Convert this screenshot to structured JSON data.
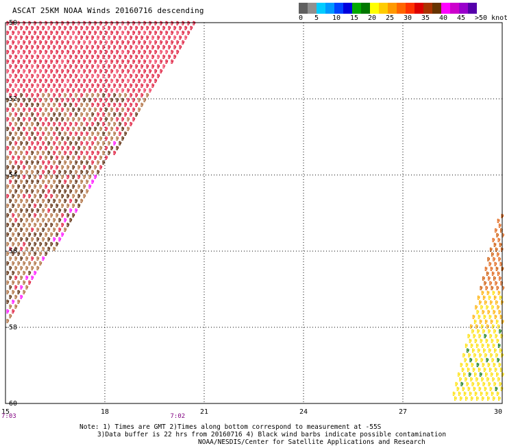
{
  "title": "ASCAT 25KM NOAA Winds 20160716 descending",
  "colorbar": {
    "colors": [
      "#606060",
      "#909090",
      "#00ccff",
      "#0099ff",
      "#0044ff",
      "#0000dd",
      "#00aa00",
      "#007700",
      "#ffff00",
      "#ffcc00",
      "#ff9900",
      "#ff6600",
      "#ff3300",
      "#dd0000",
      "#aa3300",
      "#663300",
      "#ff00ff",
      "#cc00cc",
      "#9900cc",
      "#5500aa"
    ],
    "labels": [
      "0",
      "5",
      "10",
      "15",
      "20",
      "25",
      "30",
      "35",
      "40",
      "45",
      ">50 knots"
    ]
  },
  "axes": {
    "lat_ticks": [
      "-50",
      "-52",
      "-54",
      "-56",
      "-58",
      "-60"
    ],
    "lon_ticks": [
      "15",
      "18",
      "21",
      "24",
      "27",
      "30"
    ],
    "lon_range": [
      15,
      30
    ],
    "lat_range": [
      -50,
      -60
    ]
  },
  "times": [
    {
      "label": "7:03",
      "lon": 15
    },
    {
      "label": "7:02",
      "lon": 20.2
    }
  ],
  "notes": {
    "line1": "Note: 1) Times are GMT 2)Times along bottom correspond to measurement at -55S",
    "line2": "3)Data buffer is 22 hrs from 20160716 4) Black wind barbs indicate possible contamination",
    "line3": "NOAA/NESDIS/Center for Satellite Applications and Research"
  },
  "colors": {
    "grid": "#000000",
    "time_label": "#800080",
    "barb_strong": "#dd1133",
    "barb_brown": "#aa6633",
    "barb_dark": "#552200",
    "barb_magenta": "#ff00ff",
    "barb_orange": "#e06010",
    "barb_yellow": "#ffe000",
    "barb_green": "#117711"
  }
}
